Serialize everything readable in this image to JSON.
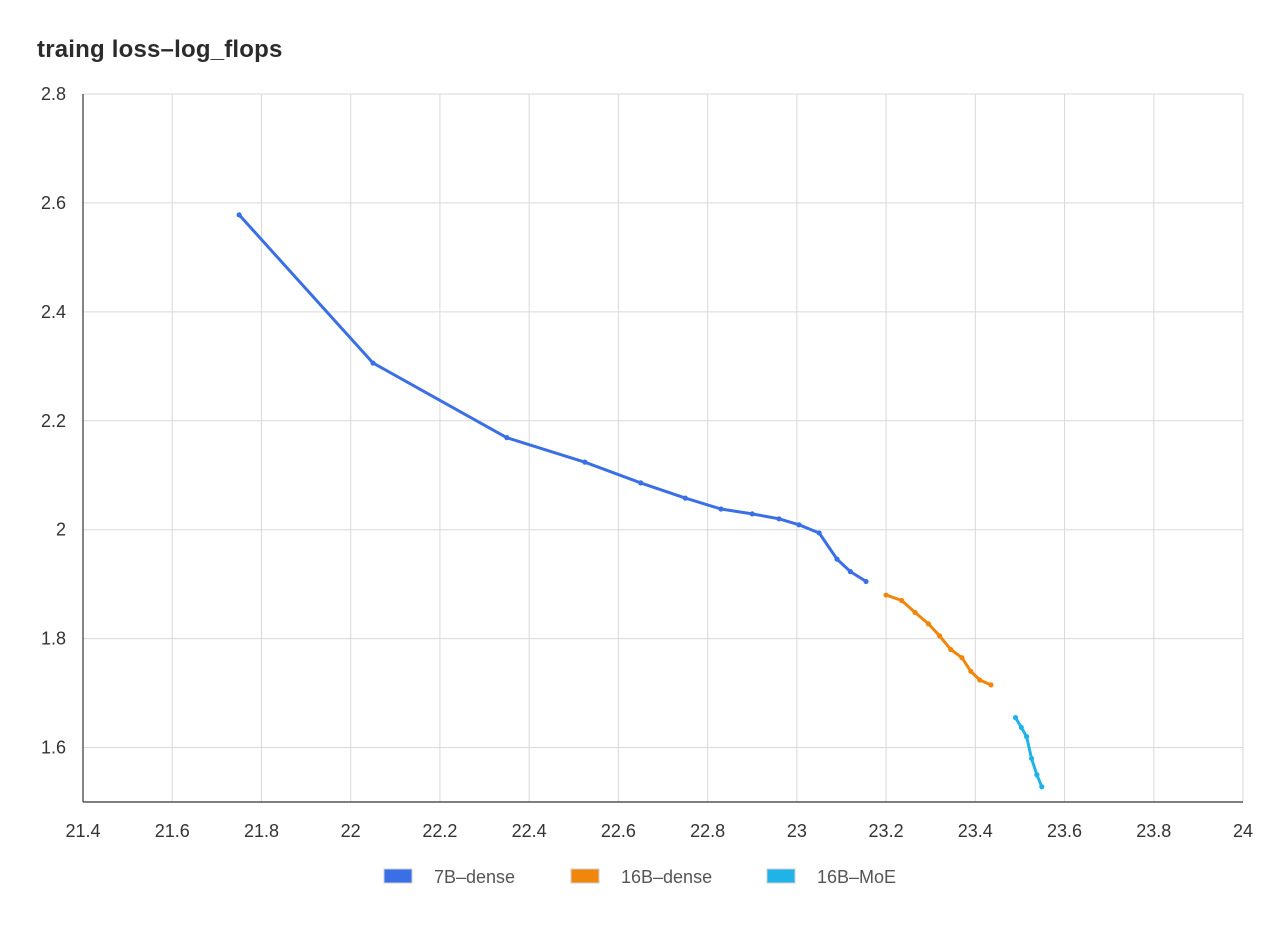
{
  "chart_data": {
    "type": "line",
    "title": "traing loss–log_flops",
    "xlabel": "",
    "ylabel": "",
    "xlim": [
      21.4,
      24
    ],
    "ylim": [
      1.5,
      2.8
    ],
    "x_ticks": [
      21.4,
      21.6,
      21.8,
      22,
      22.2,
      22.4,
      22.6,
      22.8,
      23,
      23.2,
      23.4,
      23.6,
      23.8,
      24
    ],
    "x_tick_labels": [
      "21.4",
      "21.6",
      "21.8",
      "22",
      "22.2",
      "22.4",
      "22.6",
      "22.8",
      "23",
      "23.2",
      "23.4",
      "23.6",
      "23.8",
      "24"
    ],
    "y_ticks": [
      1.6,
      1.8,
      2,
      2.2,
      2.4,
      2.6,
      2.8
    ],
    "y_tick_labels": [
      "1.6",
      "1.8",
      "2",
      "2.2",
      "2.4",
      "2.6",
      "2.8"
    ],
    "grid": true,
    "legend_position": "bottom-center",
    "series": [
      {
        "name": "7B–dense",
        "color": "#3b6fe6",
        "x": [
          21.75,
          22.05,
          22.35,
          22.525,
          22.65,
          22.75,
          22.83,
          22.9,
          22.96,
          23.005,
          23.05,
          23.09,
          23.12,
          23.155
        ],
        "y": [
          2.578,
          2.306,
          2.169,
          2.124,
          2.086,
          2.058,
          2.038,
          2.029,
          2.02,
          2.009,
          1.994,
          1.946,
          1.923,
          1.905
        ]
      },
      {
        "name": "16B–dense",
        "color": "#f0870c",
        "x": [
          23.2,
          23.235,
          23.265,
          23.295,
          23.32,
          23.345,
          23.37,
          23.39,
          23.41,
          23.435
        ],
        "y": [
          1.88,
          1.87,
          1.848,
          1.827,
          1.805,
          1.78,
          1.765,
          1.74,
          1.724,
          1.715
        ]
      },
      {
        "name": "16B–MoE",
        "color": "#1fb3e8",
        "x": [
          23.49,
          23.503,
          23.515,
          23.526,
          23.538,
          23.549
        ],
        "y": [
          1.655,
          1.637,
          1.62,
          1.58,
          1.55,
          1.528
        ]
      }
    ]
  }
}
